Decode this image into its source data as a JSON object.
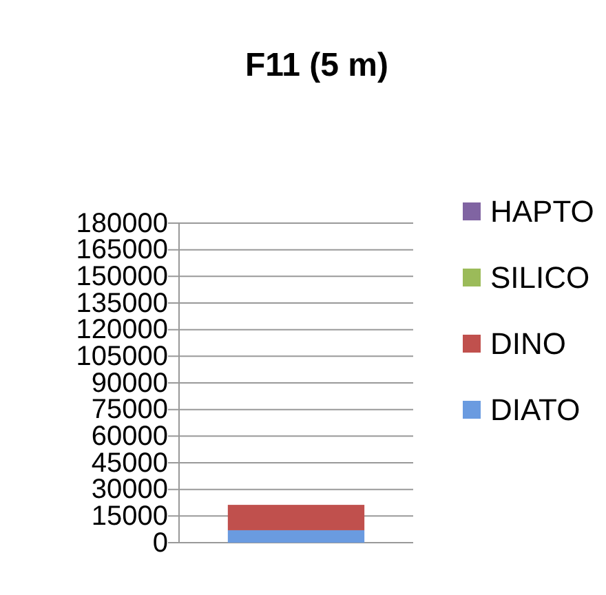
{
  "chart_data": {
    "type": "bar",
    "title": "F11 (5 m)",
    "categories": [
      null
    ],
    "stacked": true,
    "series": [
      {
        "name": "DIATO",
        "color": "#6a9be0",
        "values": [
          7000
        ]
      },
      {
        "name": "DINO",
        "color": "#c0504d",
        "values": [
          14300
        ]
      },
      {
        "name": "SILICO",
        "color": "#9bbb59",
        "values": [
          0
        ]
      },
      {
        "name": "HAPTO",
        "color": "#8064a2",
        "values": [
          0
        ]
      }
    ],
    "ylim": [
      0,
      180000
    ],
    "yticks": [
      0,
      15000,
      30000,
      45000,
      60000,
      75000,
      90000,
      105000,
      120000,
      135000,
      150000,
      165000,
      180000
    ],
    "grid": "y",
    "legend": "right"
  }
}
